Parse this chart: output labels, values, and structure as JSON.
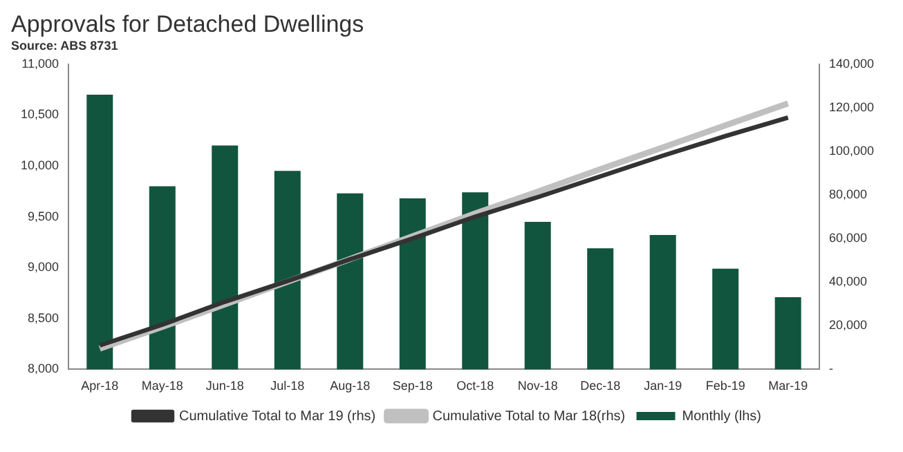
{
  "chart_data": {
    "type": "bar",
    "title": "Approvals for Detached Dwellings",
    "subtitle": "Source: ABS 8731",
    "categories": [
      "Apr-18",
      "May-18",
      "Jun-18",
      "Jul-18",
      "Aug-18",
      "Sep-18",
      "Oct-18",
      "Nov-18",
      "Dec-18",
      "Jan-19",
      "Feb-19",
      "Mar-19"
    ],
    "series": [
      {
        "name": "Monthly (lhs)",
        "color": "#12553f",
        "values": [
          10700,
          9800,
          10200,
          9950,
          9730,
          9680,
          9740,
          9450,
          9190,
          9320,
          8990,
          8710
        ]
      },
      {
        "name": "Cumulative Total to Mar 19 (rhs)",
        "type": "line",
        "axis": "y2",
        "color": "#333333",
        "values": [
          11000,
          20500,
          31000,
          40500,
          50500,
          60000,
          70000,
          79000,
          88500,
          98000,
          107000,
          115500
        ]
      },
      {
        "name": "Cumulative Total to Mar 18(rhs)",
        "type": "line",
        "axis": "y2",
        "color": "#c0c0c0",
        "values": [
          9500,
          19500,
          29800,
          40200,
          50600,
          61000,
          71500,
          81500,
          91800,
          101800,
          111900,
          122000
        ]
      }
    ],
    "ylim": [
      8000,
      11000
    ],
    "yticks": [
      {
        "value": 8000,
        "label": "8,000"
      },
      {
        "value": 8500,
        "label": "8,500"
      },
      {
        "value": 9000,
        "label": "9,000"
      },
      {
        "value": 9500,
        "label": "9,500"
      },
      {
        "value": 10000,
        "label": "10,000"
      },
      {
        "value": 10500,
        "label": "10,500"
      },
      {
        "value": 11000,
        "label": "11,000"
      }
    ],
    "y2lim": [
      0,
      140000
    ],
    "y2ticks": [
      {
        "value": 0,
        "label": "-"
      },
      {
        "value": 20000,
        "label": "20,000"
      },
      {
        "value": 40000,
        "label": "40,000"
      },
      {
        "value": 60000,
        "label": "60,000"
      },
      {
        "value": 80000,
        "label": "80,000"
      },
      {
        "value": 100000,
        "label": "100,000"
      },
      {
        "value": 120000,
        "label": "120,000"
      },
      {
        "value": 140000,
        "label": "140,000"
      }
    ],
    "grid": false,
    "legend": "bottom",
    "marker": "none"
  }
}
